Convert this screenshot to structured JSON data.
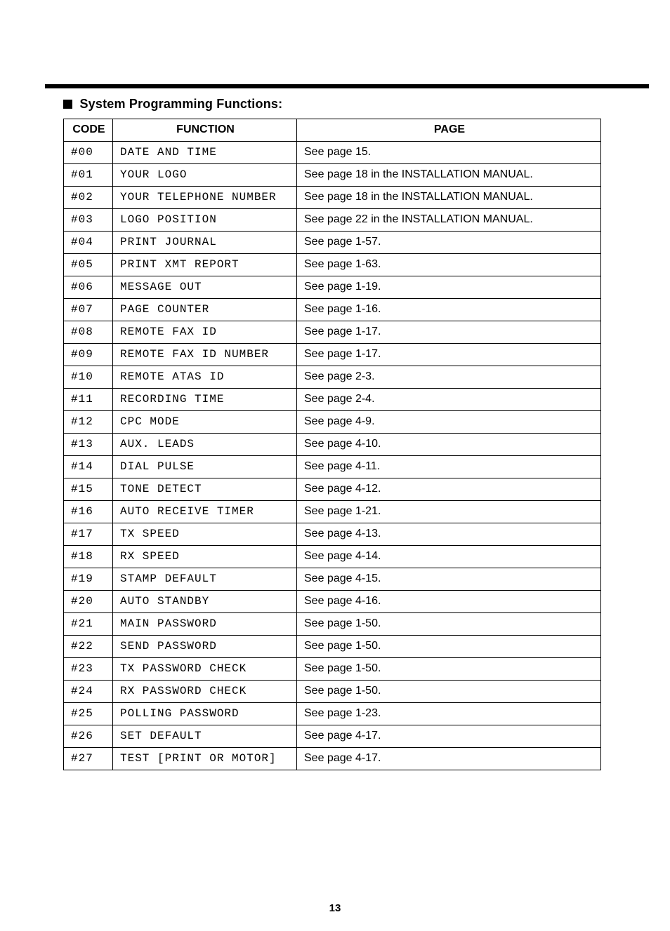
{
  "section_title": "System Programming Functions:",
  "page_number": "13",
  "table": {
    "headers": {
      "code": "CODE",
      "function": "FUNCTION",
      "page": "PAGE"
    },
    "rows": [
      {
        "code": "#00",
        "function": "DATE AND TIME",
        "page": "See page 15."
      },
      {
        "code": "#01",
        "function": "YOUR LOGO",
        "page": "See page 18 in the INSTALLATION MANUAL."
      },
      {
        "code": "#02",
        "function": "YOUR TELEPHONE NUMBER",
        "page": "See page 18 in the INSTALLATION MANUAL."
      },
      {
        "code": "#03",
        "function": "LOGO POSITION",
        "page": "See page 22 in the INSTALLATION MANUAL."
      },
      {
        "code": "#04",
        "function": "PRINT JOURNAL",
        "page": "See page 1-57."
      },
      {
        "code": "#05",
        "function": "PRINT XMT REPORT",
        "page": "See page 1-63."
      },
      {
        "code": "#06",
        "function": "MESSAGE OUT",
        "page": "See page 1-19."
      },
      {
        "code": "#07",
        "function": "PAGE COUNTER",
        "page": "See page 1-16."
      },
      {
        "code": "#08",
        "function": "REMOTE FAX ID",
        "page": "See page 1-17."
      },
      {
        "code": "#09",
        "function": "REMOTE FAX ID NUMBER",
        "page": "See page 1-17."
      },
      {
        "code": "#10",
        "function": "REMOTE ATAS ID",
        "page": "See page 2-3."
      },
      {
        "code": "#11",
        "function": "RECORDING TIME",
        "page": "See page 2-4."
      },
      {
        "code": "#12",
        "function": "CPC MODE",
        "page": "See page 4-9."
      },
      {
        "code": "#13",
        "function": "AUX. LEADS",
        "page": "See page 4-10."
      },
      {
        "code": "#14",
        "function": "DIAL PULSE",
        "page": "See page 4-11."
      },
      {
        "code": "#15",
        "function": "TONE DETECT",
        "page": "See page 4-12."
      },
      {
        "code": "#16",
        "function": "AUTO RECEIVE TIMER",
        "page": "See page 1-21."
      },
      {
        "code": "#17",
        "function": "TX SPEED",
        "page": "See page 4-13."
      },
      {
        "code": "#18",
        "function": "RX SPEED",
        "page": "See page 4-14."
      },
      {
        "code": "#19",
        "function": "STAMP DEFAULT",
        "page": "See page 4-15."
      },
      {
        "code": "#20",
        "function": "AUTO STANDBY",
        "page": "See page 4-16."
      },
      {
        "code": "#21",
        "function": "MAIN PASSWORD",
        "page": "See page 1-50."
      },
      {
        "code": "#22",
        "function": "SEND PASSWORD",
        "page": "See page 1-50."
      },
      {
        "code": "#23",
        "function": "TX PASSWORD CHECK",
        "page": "See page 1-50."
      },
      {
        "code": "#24",
        "function": "RX PASSWORD CHECK",
        "page": "See page 1-50."
      },
      {
        "code": "#25",
        "function": "POLLING PASSWORD",
        "page": "See page 1-23."
      },
      {
        "code": "#26",
        "function": "SET DEFAULT",
        "page": "See page 4-17."
      },
      {
        "code": "#27",
        "function": "TEST [PRINT OR MOTOR]",
        "page": "See page 4-17."
      }
    ]
  }
}
